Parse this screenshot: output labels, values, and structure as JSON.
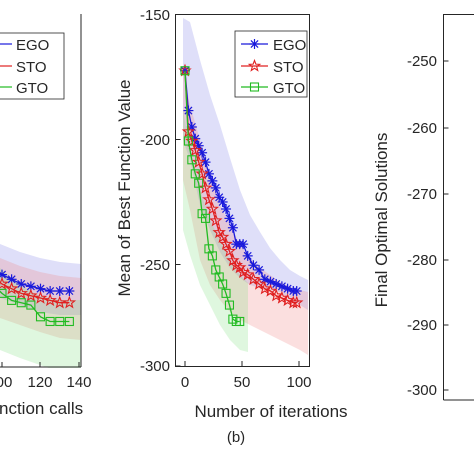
{
  "chart_data": [
    {
      "panel": "left",
      "type": "line",
      "title": "",
      "xlabel": "nction calls",
      "ylabel": "",
      "x_ticks": [
        "00",
        "120",
        "140"
      ],
      "xlim_visible": [
        95,
        142
      ],
      "ylim": [
        -300,
        -150
      ],
      "legend": {
        "placement": "top-left",
        "entries": [
          "EGO",
          "STO",
          "GTO"
        ]
      },
      "series": [
        {
          "name": "EGO",
          "color": "#1a1adb",
          "marker": "asterisk",
          "x": [
            95,
            100,
            105,
            110,
            115,
            120,
            125,
            130,
            135
          ],
          "y": [
            -258,
            -261,
            -263,
            -265,
            -266,
            -267,
            -268,
            -268,
            -268
          ]
        },
        {
          "name": "STO",
          "color": "#e02020",
          "marker": "star",
          "x": [
            95,
            100,
            105,
            110,
            115,
            120,
            125,
            130,
            135
          ],
          "y": [
            -262,
            -265,
            -267,
            -269,
            -270,
            -271,
            -272,
            -273,
            -273
          ]
        },
        {
          "name": "GTO",
          "color": "#22bb22",
          "marker": "square",
          "x": [
            95,
            100,
            105,
            110,
            115,
            120,
            125,
            130,
            135
          ],
          "y": [
            -265,
            -269,
            -272,
            -273,
            -274,
            -279,
            -281,
            -281,
            -281
          ]
        }
      ]
    },
    {
      "panel": "(b)",
      "type": "line",
      "title": "",
      "xlabel": "Number of iterations",
      "ylabel": "Mean of Best Function Value",
      "xlim": [
        -5,
        102
      ],
      "ylim": [
        -300,
        -150
      ],
      "x_ticks": [
        "0",
        "50",
        "100"
      ],
      "y_ticks": [
        "-150",
        "-200",
        "-250",
        "-300"
      ],
      "legend": {
        "placement": "top-right",
        "entries": [
          "EGO",
          "STO",
          "GTO"
        ]
      },
      "caption": "(b)",
      "series": [
        {
          "name": "EGO",
          "color": "#1a1adb",
          "marker": "asterisk",
          "x": [
            0,
            3,
            6,
            9,
            12,
            15,
            18,
            21,
            24,
            27,
            30,
            33,
            36,
            39,
            42,
            45,
            48,
            51,
            55,
            60,
            65,
            70,
            75,
            80,
            85,
            90,
            95,
            98
          ],
          "y": [
            -174,
            -191,
            -198,
            -203,
            -206,
            -209,
            -213,
            -218,
            -221,
            -224,
            -228,
            -230,
            -233,
            -237,
            -241,
            -248,
            -248,
            -248,
            -253,
            -257,
            -259,
            -263,
            -264,
            -265,
            -266,
            -267,
            -268,
            -268
          ]
        },
        {
          "name": "STO",
          "color": "#e02020",
          "marker": "star",
          "x": [
            0,
            3,
            6,
            9,
            12,
            15,
            18,
            21,
            24,
            27,
            30,
            33,
            36,
            39,
            42,
            45,
            48,
            51,
            55,
            60,
            65,
            70,
            75,
            80,
            85,
            90,
            95,
            98
          ],
          "y": [
            -174,
            -200,
            -204,
            -208,
            -213,
            -218,
            -224,
            -229,
            -233,
            -238,
            -243,
            -245,
            -248,
            -251,
            -255,
            -257,
            -258,
            -260,
            -261,
            -263,
            -265,
            -267,
            -268,
            -270,
            -271,
            -272,
            -273,
            -273
          ]
        },
        {
          "name": "GTO",
          "color": "#22bb22",
          "marker": "square",
          "x": [
            0,
            3,
            6,
            9,
            12,
            15,
            18,
            21,
            24,
            27,
            30,
            33,
            36,
            39,
            42,
            45,
            48
          ],
          "y": [
            -174,
            -204,
            -212,
            -218,
            -222,
            -235,
            -237,
            -250,
            -253,
            -259,
            -262,
            -265,
            -269,
            -274,
            -280,
            -281,
            -281
          ]
        }
      ]
    },
    {
      "panel": "right",
      "type": "box",
      "title": "",
      "xlabel": "",
      "ylabel": "Final Optimal Solutions",
      "ylim": [
        -302,
        -240
      ],
      "y_ticks": [
        "-250",
        "-260",
        "-270",
        "-280",
        "-290",
        "-300"
      ]
    }
  ]
}
